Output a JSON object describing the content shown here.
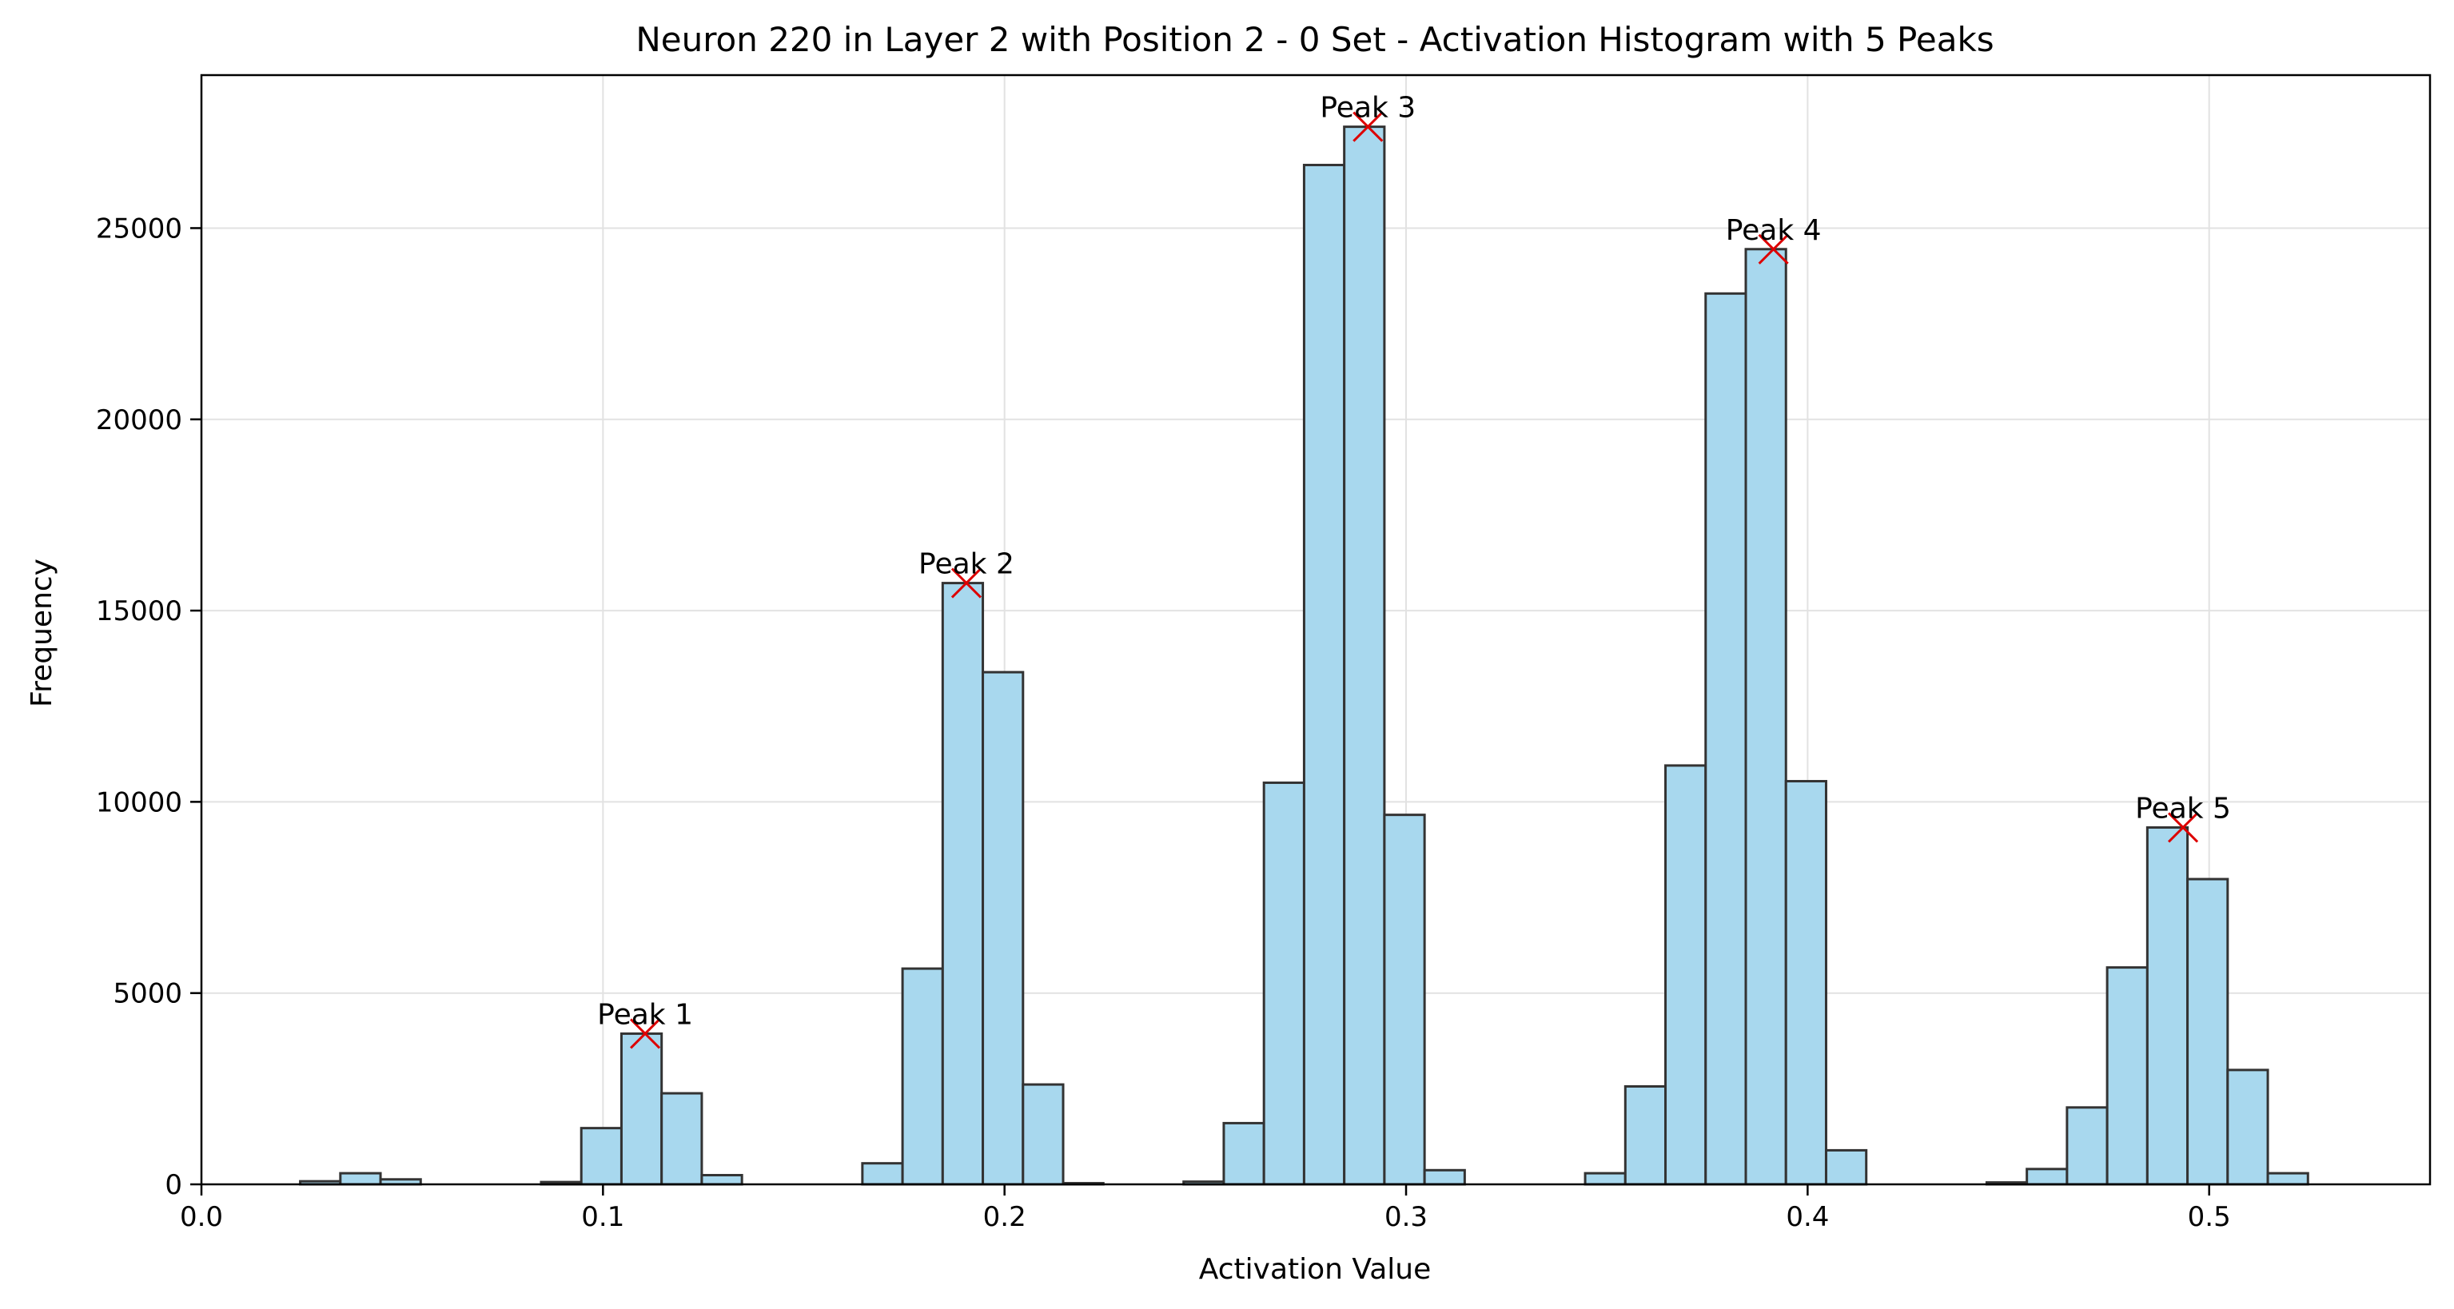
{
  "chart_data": {
    "type": "bar",
    "title": "Neuron 220 in Layer 2 with Position 2 - 0 Set - Activation Histogram with 5 Peaks",
    "xlabel": "Activation Value",
    "ylabel": "Frequency",
    "xlim": [
      0.0,
      0.555
    ],
    "ylim": [
      0,
      29000
    ],
    "xticks": [
      0.0,
      0.1,
      0.2,
      0.3,
      0.4,
      0.5
    ],
    "xtick_labels": [
      "0.0",
      "0.1",
      "0.2",
      "0.3",
      "0.4",
      "0.5"
    ],
    "yticks": [
      0,
      5000,
      10000,
      15000,
      20000,
      25000
    ],
    "ytick_labels": [
      "0",
      "5000",
      "10000",
      "15000",
      "20000",
      "25000"
    ],
    "grid": true,
    "bar_color": "#a8d8ee",
    "bar_edge_color": "#333333",
    "peak_marker_color": "#dd0000",
    "bins": [
      {
        "x0": 0.0246,
        "x1": 0.0346,
        "count": 80
      },
      {
        "x0": 0.0346,
        "x1": 0.0446,
        "count": 290
      },
      {
        "x0": 0.0446,
        "x1": 0.0546,
        "count": 130
      },
      {
        "x0": 0.0846,
        "x1": 0.0946,
        "count": 60
      },
      {
        "x0": 0.0946,
        "x1": 0.1046,
        "count": 1470
      },
      {
        "x0": 0.1046,
        "x1": 0.1146,
        "count": 3940
      },
      {
        "x0": 0.1146,
        "x1": 0.1246,
        "count": 2380
      },
      {
        "x0": 0.1246,
        "x1": 0.1346,
        "count": 240
      },
      {
        "x0": 0.1646,
        "x1": 0.1746,
        "count": 550
      },
      {
        "x0": 0.1746,
        "x1": 0.1846,
        "count": 5640
      },
      {
        "x0": 0.1846,
        "x1": 0.1946,
        "count": 15720
      },
      {
        "x0": 0.1946,
        "x1": 0.2046,
        "count": 13390
      },
      {
        "x0": 0.2046,
        "x1": 0.2146,
        "count": 2610
      },
      {
        "x0": 0.2146,
        "x1": 0.2246,
        "count": 30
      },
      {
        "x0": 0.2446,
        "x1": 0.2546,
        "count": 70
      },
      {
        "x0": 0.2546,
        "x1": 0.2646,
        "count": 1600
      },
      {
        "x0": 0.2646,
        "x1": 0.2746,
        "count": 10500
      },
      {
        "x0": 0.2746,
        "x1": 0.2846,
        "count": 26650
      },
      {
        "x0": 0.2846,
        "x1": 0.2946,
        "count": 27650
      },
      {
        "x0": 0.2946,
        "x1": 0.3046,
        "count": 9660
      },
      {
        "x0": 0.3046,
        "x1": 0.3146,
        "count": 370
      },
      {
        "x0": 0.3446,
        "x1": 0.3546,
        "count": 290
      },
      {
        "x0": 0.3546,
        "x1": 0.3646,
        "count": 2560
      },
      {
        "x0": 0.3646,
        "x1": 0.3746,
        "count": 10950
      },
      {
        "x0": 0.3746,
        "x1": 0.3846,
        "count": 23290
      },
      {
        "x0": 0.3846,
        "x1": 0.3946,
        "count": 24450
      },
      {
        "x0": 0.3946,
        "x1": 0.4046,
        "count": 10540
      },
      {
        "x0": 0.4046,
        "x1": 0.4146,
        "count": 890
      },
      {
        "x0": 0.4446,
        "x1": 0.4546,
        "count": 50
      },
      {
        "x0": 0.4546,
        "x1": 0.4646,
        "count": 400
      },
      {
        "x0": 0.4646,
        "x1": 0.4746,
        "count": 2010
      },
      {
        "x0": 0.4746,
        "x1": 0.4846,
        "count": 5670
      },
      {
        "x0": 0.4846,
        "x1": 0.4946,
        "count": 9330
      },
      {
        "x0": 0.4946,
        "x1": 0.5046,
        "count": 7980
      },
      {
        "x0": 0.5046,
        "x1": 0.5146,
        "count": 2990
      },
      {
        "x0": 0.5146,
        "x1": 0.5246,
        "count": 290
      }
    ],
    "peaks": [
      {
        "label": "Peak 1",
        "x": 0.1105,
        "y": 3940
      },
      {
        "label": "Peak 2",
        "x": 0.1905,
        "y": 15720
      },
      {
        "label": "Peak 3",
        "x": 0.2905,
        "y": 27650
      },
      {
        "label": "Peak 4",
        "x": 0.3915,
        "y": 24450
      },
      {
        "label": "Peak 5",
        "x": 0.4935,
        "y": 9330
      }
    ]
  }
}
